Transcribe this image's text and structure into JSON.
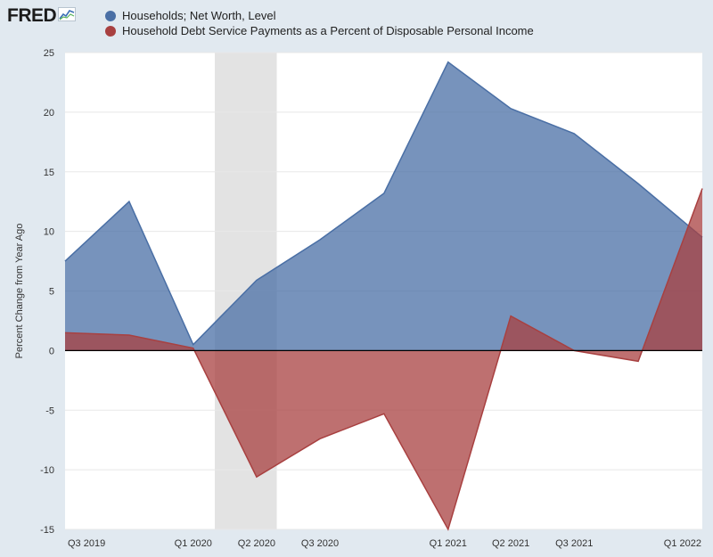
{
  "header": {
    "logo_text": "FRED",
    "logo_icon": "fred-chart-icon"
  },
  "chart_data": {
    "type": "area",
    "ylabel": "Percent Change from Year Ago",
    "ylim": [
      -15,
      25
    ],
    "yticks": [
      -15,
      -10,
      -5,
      0,
      5,
      10,
      15,
      20,
      25
    ],
    "x": [
      "2019-07-01",
      "2019-10-01",
      "2020-01-01",
      "2020-04-01",
      "2020-07-01",
      "2020-10-01",
      "2021-01-01",
      "2021-04-01",
      "2021-07-01",
      "2021-10-01",
      "2022-01-01"
    ],
    "x_tick_labels": [
      "Q3 2019",
      "Q1 2020",
      "Q2 2020",
      "Q3 2020",
      "Q1 2021",
      "Q2 2021",
      "Q3 2021",
      "Q1 2022"
    ],
    "x_tick_dates": [
      "2019-07-01",
      "2020-01-01",
      "2020-04-01",
      "2020-07-01",
      "2021-01-01",
      "2021-04-01",
      "2021-07-01",
      "2022-01-01"
    ],
    "recession": {
      "start": "2020-02-01",
      "end": "2020-04-30"
    },
    "grid": true,
    "legend_position": "top",
    "series": [
      {
        "name": "Households; Net Worth, Level",
        "color": "#4a6fa5",
        "values": [
          7.5,
          12.5,
          0.5,
          5.9,
          9.3,
          13.2,
          24.2,
          20.3,
          18.2,
          14.0,
          9.5
        ]
      },
      {
        "name": "Household Debt Service Payments as a Percent of Disposable Personal Income",
        "color": "#a84040",
        "values": [
          1.5,
          1.3,
          0.2,
          -10.6,
          -7.4,
          -5.3,
          -15.0,
          2.9,
          0.0,
          -0.9,
          13.6
        ]
      }
    ]
  }
}
